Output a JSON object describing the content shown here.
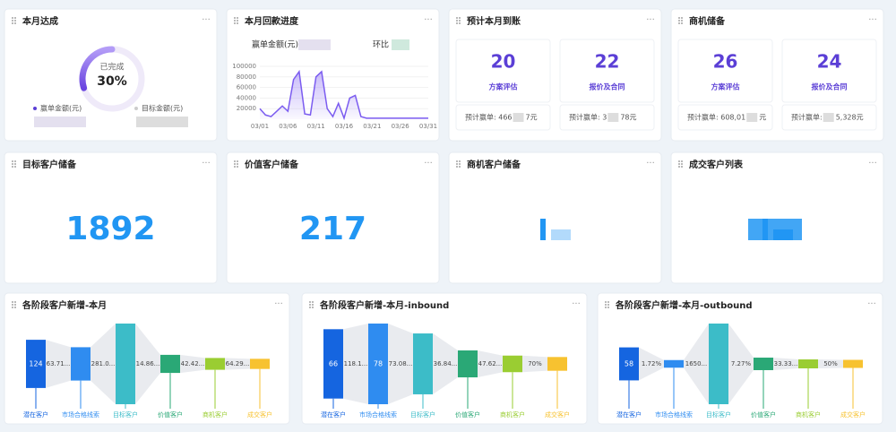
{
  "monthly_achievement": {
    "title": "本月达成",
    "ring_label": "已完成",
    "completion": {
      "value": 30,
      "label": "30%"
    },
    "legend": [
      "赢单金额(元)",
      "目标金额(元)"
    ]
  },
  "payment_progress": {
    "title": "本月回款进度",
    "won_amount_label": "赢单金额(元)",
    "mom_label": "环比",
    "chart_data": {
      "type": "line",
      "color": "#7b5cf0",
      "categories": [
        "03/01",
        null,
        null,
        null,
        null,
        "03/06",
        null,
        null,
        null,
        null,
        "03/11",
        null,
        null,
        null,
        null,
        "03/16",
        null,
        null,
        null,
        null,
        "03/21",
        null,
        null,
        null,
        null,
        "03/26",
        null,
        null,
        null,
        null,
        "03/31"
      ],
      "values": [
        20000,
        8000,
        5000,
        15000,
        25000,
        15000,
        75000,
        90000,
        10000,
        8000,
        80000,
        90000,
        20000,
        5000,
        30000,
        2000,
        40000,
        45000,
        5000,
        2000,
        2000,
        2000,
        2000,
        2000,
        2000,
        2000,
        2000,
        2000,
        2000,
        2000,
        2000
      ],
      "ylim": [
        0,
        100000
      ],
      "yticks": [
        20000,
        40000,
        60000,
        80000,
        100000
      ]
    }
  },
  "expected_arrival": {
    "title": "预计本月到账",
    "items": [
      {
        "count": "20",
        "stage": "方案评估",
        "forecast_prefix": "预计赢单: 466",
        "forecast_suffix": "7元"
      },
      {
        "count": "22",
        "stage": "报价及合同",
        "forecast_prefix": "预计赢单: 3",
        "forecast_suffix": "78元"
      }
    ]
  },
  "opportunity_reserve": {
    "title": "商机储备",
    "items": [
      {
        "count": "26",
        "stage": "方案评估",
        "forecast_prefix": "预计赢单: 608,01",
        "forecast_suffix": "元"
      },
      {
        "count": "24",
        "stage": "报价及合同",
        "forecast_prefix": "预计赢单:",
        "forecast_suffix": "5,328元"
      }
    ]
  },
  "stats": [
    {
      "title": "目标客户储备",
      "value": "1892"
    },
    {
      "title": "价值客户储备",
      "value": "217"
    },
    {
      "title": "商机客户储备"
    },
    {
      "title": "成交客户列表"
    }
  ],
  "funnels": [
    {
      "title": "各阶段客户新增-本月",
      "stages": [
        "潜在客户",
        "市场合格线索",
        "目标客户",
        "价值客户",
        "商机客户",
        "成交客户"
      ],
      "values": [
        124,
        79,
        222,
        33,
        14,
        9
      ],
      "value_labels": [
        "124",
        null,
        null,
        null,
        null,
        null
      ],
      "rates": [
        "63.71...",
        "281.0...",
        "14.86...",
        "42.42...",
        "64.29..."
      ]
    },
    {
      "title": "各阶段客户新增-本月-inbound",
      "stages": [
        "潜在客户",
        "市场合格线索",
        "目标客户",
        "价值客户",
        "商机客户",
        "成交客户"
      ],
      "values": [
        66,
        78,
        57,
        21,
        10,
        7
      ],
      "value_labels": [
        "66",
        "78",
        null,
        null,
        null,
        null
      ],
      "rates": [
        "118.1...",
        "73.08...",
        "36.84...",
        "47.62...",
        "70%"
      ]
    },
    {
      "title": "各阶段客户新增-本月-outbound",
      "stages": [
        "潜在客户",
        "市场合格线索",
        "目标客户",
        "价值客户",
        "商机客户",
        "成交客户"
      ],
      "values": [
        58,
        1,
        165,
        12,
        4,
        2
      ],
      "value_labels": [
        "58",
        null,
        null,
        null,
        null,
        null
      ],
      "rates": [
        "1.72%",
        "1650...",
        "7.27%",
        "33.33...",
        "50%"
      ]
    }
  ]
}
